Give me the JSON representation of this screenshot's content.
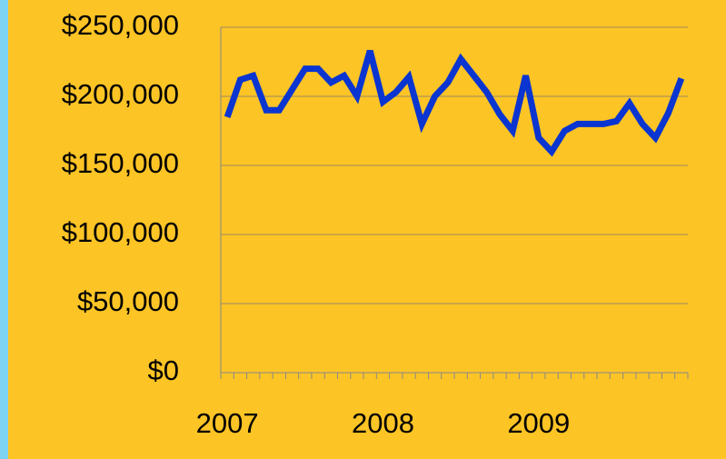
{
  "chart_data": {
    "type": "line",
    "categories": [
      "2007",
      null,
      null,
      null,
      null,
      null,
      null,
      null,
      null,
      null,
      null,
      null,
      "2008",
      null,
      null,
      null,
      null,
      null,
      null,
      null,
      null,
      null,
      null,
      null,
      "2009",
      null,
      null,
      null,
      null,
      null,
      null,
      null,
      null,
      null,
      null,
      null
    ],
    "series": [
      {
        "color": "#0a35d0",
        "values": [
          185000,
          212000,
          215000,
          190000,
          190000,
          205000,
          220000,
          220000,
          210000,
          215000,
          200000,
          233000,
          196000,
          203000,
          214000,
          180000,
          200000,
          210000,
          227000,
          215000,
          203000,
          187000,
          175000,
          215000,
          170000,
          160000,
          175000,
          180000,
          180000,
          180000,
          182000,
          195000,
          180000,
          170000,
          188000,
          213000
        ]
      }
    ],
    "ylim": [
      0,
      250000
    ],
    "yticks": [
      {
        "value": 0,
        "label": "$0"
      },
      {
        "value": 50000,
        "label": "$50,000"
      },
      {
        "value": 100000,
        "label": "$100,000"
      },
      {
        "value": 150000,
        "label": "$150,000"
      },
      {
        "value": 200000,
        "label": "$200,000"
      },
      {
        "value": 250000,
        "label": "$250,000"
      }
    ],
    "grid": true
  }
}
